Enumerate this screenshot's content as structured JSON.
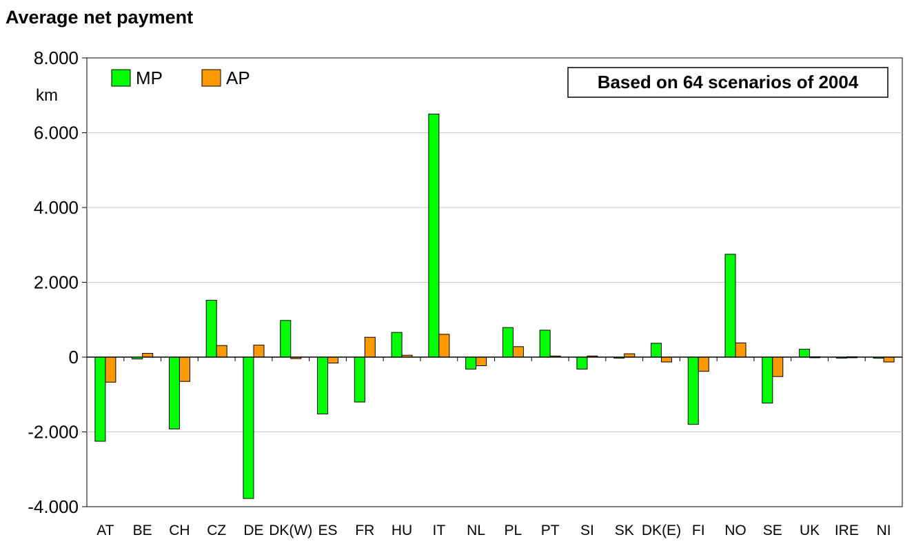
{
  "chart_data": {
    "type": "bar",
    "title": "Average net payment",
    "ylabel": "km",
    "ylim": [
      -4000,
      8000
    ],
    "yticks": [
      8000,
      6000,
      4000,
      2000,
      0,
      -2000,
      -4000
    ],
    "ytick_labels": [
      "8.000",
      "6.000",
      "4.000",
      "2.000",
      "0",
      "-2.000",
      "-4.000"
    ],
    "grid": true,
    "legend_position": "top-left",
    "annotation": "Based on 64 scenarios of 2004",
    "categories": [
      "AT",
      "BE",
      "CH",
      "CZ",
      "DE",
      "DK(W)",
      "ES",
      "FR",
      "HU",
      "IT",
      "NL",
      "PL",
      "PT",
      "SI",
      "SK",
      "DK(E)",
      "FI",
      "NO",
      "SE",
      "UK",
      "IRE",
      "NI"
    ],
    "series": [
      {
        "name": "MP",
        "color": "#00ff00",
        "values": [
          -2250,
          -50,
          -1920,
          1520,
          -3780,
          980,
          -1520,
          -1200,
          660,
          6500,
          -320,
          790,
          720,
          -320,
          -20,
          370,
          -1800,
          2750,
          -1230,
          210,
          -20,
          -30
        ]
      },
      {
        "name": "AP",
        "color": "#ff9900",
        "values": [
          -670,
          100,
          -650,
          310,
          320,
          -40,
          -160,
          530,
          50,
          610,
          -230,
          280,
          30,
          30,
          90,
          -130,
          -380,
          380,
          -520,
          10,
          10,
          -130
        ]
      }
    ]
  }
}
